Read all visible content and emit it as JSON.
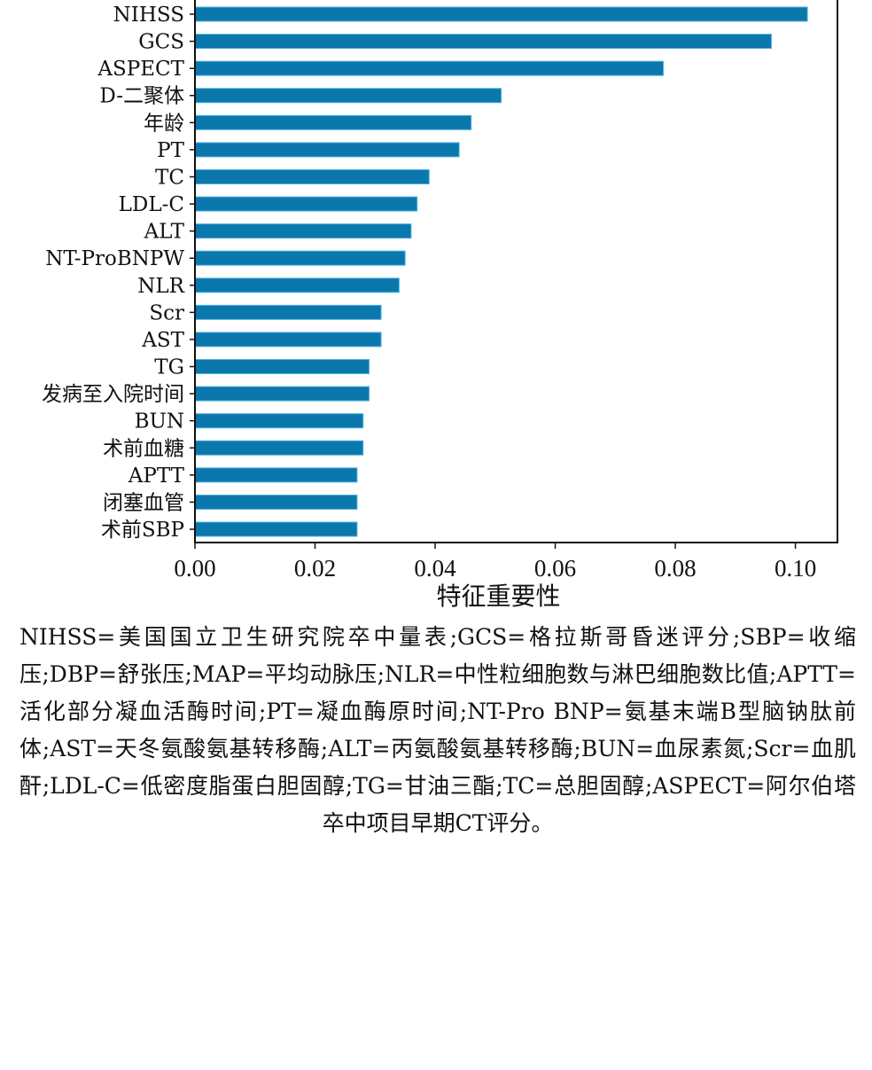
{
  "chart_data": {
    "type": "bar",
    "orientation": "horizontal",
    "categories": [
      "NIHSS",
      "GCS",
      "ASPECT",
      "D-二聚体",
      "年龄",
      "PT",
      "TC",
      "LDL-C",
      "ALT",
      "NT-ProBNPW",
      "NLR",
      "Scr",
      "AST",
      "TG",
      "发病至入院时间",
      "BUN",
      "术前血糖",
      "APTT",
      "闭塞血管",
      "术前SBP"
    ],
    "values": [
      0.102,
      0.096,
      0.078,
      0.051,
      0.046,
      0.044,
      0.039,
      0.037,
      0.036,
      0.035,
      0.034,
      0.031,
      0.031,
      0.029,
      0.029,
      0.028,
      0.028,
      0.027,
      0.027,
      0.027
    ],
    "xlabel": "特征重要性",
    "ylabel": "",
    "xlim": [
      0,
      0.107
    ],
    "xticks": [
      "0.00",
      "0.02",
      "0.04",
      "0.06",
      "0.08",
      "0.10"
    ],
    "grid": false,
    "bar_color": "#0a77ad"
  },
  "caption": "NIHSS=美国国立卫生研究院卒中量表;GCS=格拉斯哥昏迷评分;SBP=收缩压;DBP=舒张压;MAP=平均动脉压;NLR=中性粒细胞数与淋巴细胞数比值;APTT=活化部分凝血活酶时间;PT=凝血酶原时间;NT-Pro BNP=氨基末端B型脑钠肽前体;AST=天冬氨酸氨基转移酶;ALT=丙氨酸氨基转移酶;BUN=血尿素氮;Scr=血肌酐;LDL-C=低密度脂蛋白胆固醇;TG=甘油三酯;TC=总胆固醇;ASPECT=阿尔伯塔卒中项目早期CT评分。"
}
